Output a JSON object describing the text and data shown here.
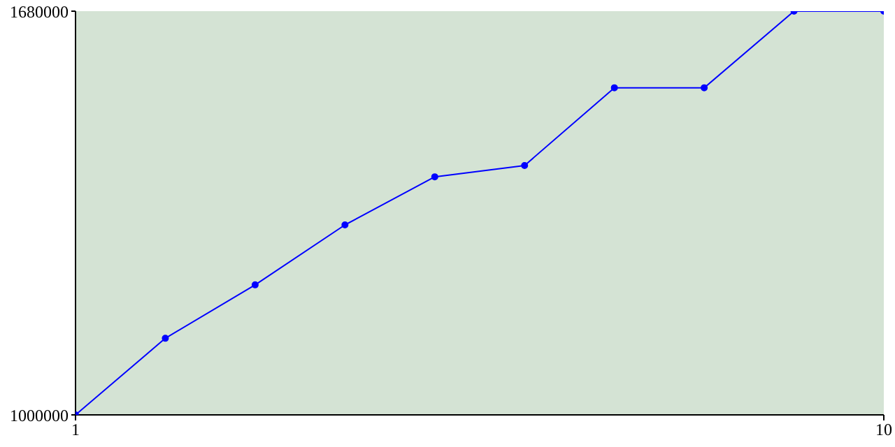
{
  "chart_data": {
    "type": "line",
    "x": [
      1,
      2,
      3,
      4,
      5,
      6,
      7,
      8,
      9,
      10
    ],
    "series": [
      {
        "color": "#0000ff",
        "values": [
          1000000,
          1129000,
          1219000,
          1320000,
          1401000,
          1420000,
          1551000,
          1551000,
          1680000,
          1680000
        ]
      }
    ],
    "xlim": [
      1,
      10
    ],
    "xticks": [
      1,
      10
    ],
    "ylim": [
      1000000,
      1680000
    ],
    "yticks": [
      1000000,
      1680000
    ],
    "marker": "circle",
    "line_style": "solid",
    "grid": false,
    "legend": false
  }
}
